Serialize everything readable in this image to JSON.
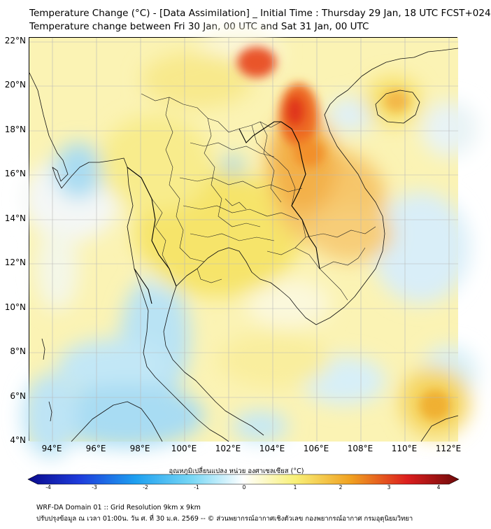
{
  "title_line1": "Temperature Change (°C) - [Data Assimilation] _ Initial Time : Thursday 29 Jan, 18 UTC FCST+024",
  "title_line2": "Temperature change between Fri 30 Jan, 00 UTC and Sat 31 Jan, 00 UTC",
  "lat_labels": [
    "22°N",
    "20°N",
    "18°N",
    "16°N",
    "14°N",
    "12°N",
    "10°N",
    "8°N",
    "6°N",
    "4°N"
  ],
  "lon_labels": [
    "94°E",
    "96°E",
    "98°E",
    "100°E",
    "102°E",
    "104°E",
    "106°E",
    "108°E",
    "110°E",
    "112°E"
  ],
  "colorbar": {
    "title": "อุณหภูมิเปลี่ยนแปลง หน่วย องศาเซลเซียส (°C)",
    "ticks": [
      "-4",
      "-3",
      "-2",
      "-1",
      "0",
      "1",
      "2",
      "3",
      "4"
    ],
    "min": -4,
    "max": 4
  },
  "footer_line1": "WRF-DA Domain 01 :: Grid Resolution 9km x 9km",
  "footer_line2": "ปรับปรุงข้อมูล ณ เวลา 01:00น. วัน ศ. ที่ 30 ม.ค. 2569 -- © ส่วนพยากรณ์อากาศเชิงตัวเลข กองพยากรณ์อากาศ กรมอุตุนิยมวิทยา",
  "colors": {
    "cold_max": "#0a0a8c",
    "cool": "#3cc8f0",
    "neutral": "#ffffff",
    "warm": "#f5e650",
    "warm_high": "#f0a020",
    "hot": "#dc1e1e",
    "hot_max": "#6e0a0a"
  }
}
